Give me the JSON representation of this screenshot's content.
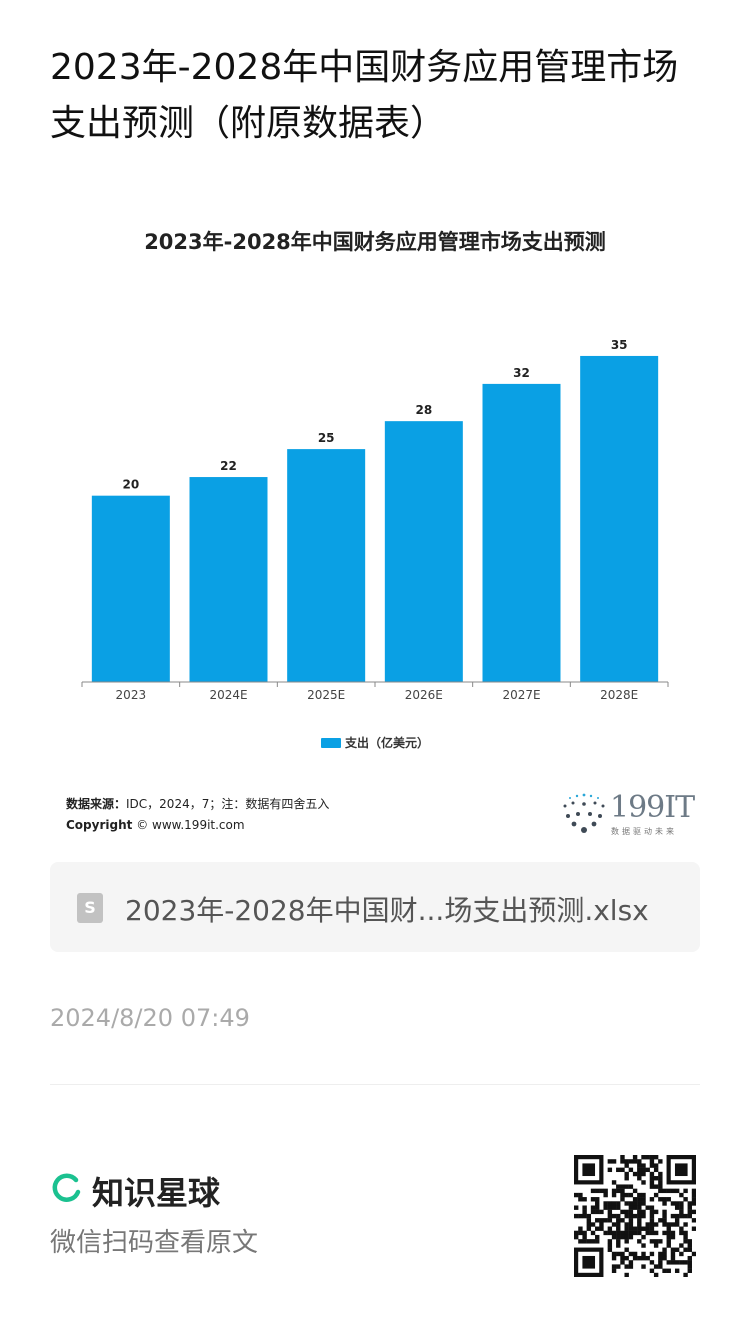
{
  "post": {
    "title": "2023年-2028年中国财务应用管理市场支出预测（附原数据表）"
  },
  "chart": {
    "source_label": "数据来源：",
    "source_text": "IDC，2024，7；注：数据有四舍五入",
    "copyright_label": "Copyright",
    "copyright_text": "© www.199it.com",
    "brand": "199IT",
    "brand_slogan": "数据驱动未来"
  },
  "chart_data": {
    "type": "bar",
    "title": "2023年-2028年中国财务应用管理市场支出预测",
    "categories": [
      "2023",
      "2024E",
      "2025E",
      "2026E",
      "2027E",
      "2028E"
    ],
    "series": [
      {
        "name": "支出（亿美元）",
        "values": [
          20,
          22,
          25,
          28,
          32,
          35
        ]
      }
    ],
    "ylim": [
      0,
      38
    ],
    "grid": false,
    "legend": "bottom-center",
    "bar_color": "#0aa0e4"
  },
  "attachment": {
    "file_icon_letter": "S",
    "file_name": "2023年-2028年中国财...场支出预测.xlsx"
  },
  "meta": {
    "timestamp": "2024/8/20 07:49"
  },
  "footer": {
    "app_name": "知识星球",
    "scan_hint": "微信扫码查看原文",
    "accent_color": "#1bc190"
  }
}
